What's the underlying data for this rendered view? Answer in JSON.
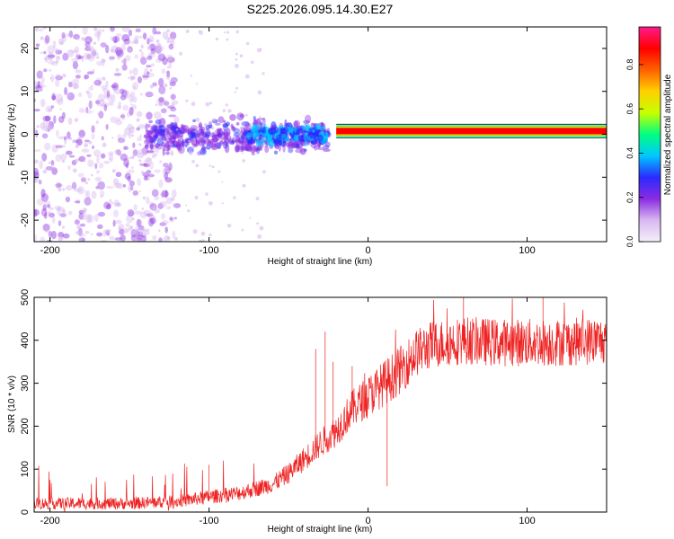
{
  "title": "S225.2026.095.14.30.E27",
  "colors": {
    "snr_line": "#ee2222",
    "band_outline": "#000000",
    "colormap": [
      "#f5f0fa",
      "#d8b8f0",
      "#8a2be2",
      "#2a2aff",
      "#00c8ff",
      "#00ff80",
      "#c8ff00",
      "#ffd000",
      "#ff6000",
      "#ff0000",
      "#ff1a8c"
    ]
  },
  "chart_data": [
    {
      "type": "heatmap",
      "xlabel": "Height of straight line (km)",
      "ylabel": "Frequency (Hz)",
      "xlim": [
        -210,
        150
      ],
      "ylim": [
        -25,
        25
      ],
      "xticks": [
        -200,
        -100,
        0,
        100
      ],
      "yticks": [
        -20,
        -10,
        0,
        10,
        20
      ],
      "colorbar": {
        "label": "Normalized spectral amplitude",
        "range": [
          0,
          0.97
        ],
        "ticks": [
          "0.0",
          "0.2",
          "0.4",
          "0.6",
          "0.8"
        ]
      },
      "features": [
        {
          "x_range": [
            -210,
            -120
          ],
          "freq_range": [
            -25,
            25
          ],
          "amplitude": 0.08
        },
        {
          "x_range": [
            -140,
            -25
          ],
          "freq_range": [
            -6,
            5
          ],
          "amplitude": 0.15
        },
        {
          "x_range": [
            -75,
            -25
          ],
          "freq_range": [
            -3,
            3
          ],
          "amplitude": 0.3
        },
        {
          "x_range": [
            -20,
            150
          ],
          "freq_range": [
            0,
            1.5
          ],
          "amplitude": 0.9
        }
      ]
    },
    {
      "type": "line",
      "xlabel": "Height of straight line (km)",
      "ylabel": "SNR (10 * v/v)",
      "xlim": [
        -210,
        150
      ],
      "ylim": [
        0,
        500
      ],
      "xticks": [
        -200,
        -100,
        0,
        100
      ],
      "yticks": [
        0,
        100,
        200,
        300,
        400,
        500
      ],
      "trend": {
        "x": [
          -210,
          -150,
          -120,
          -100,
          -80,
          -60,
          -50,
          -40,
          -30,
          -20,
          -10,
          0,
          10,
          20,
          30,
          40,
          60,
          80,
          100,
          120,
          150
        ],
        "y": [
          20,
          20,
          25,
          35,
          45,
          65,
          90,
          125,
          160,
          190,
          240,
          270,
          300,
          330,
          370,
          390,
          400,
          395,
          395,
          395,
          400
        ]
      },
      "spikes": [
        {
          "x": -100,
          "y": 110
        },
        {
          "x": -33,
          "y": 380
        },
        {
          "x": -27,
          "y": 420
        },
        {
          "x": -22,
          "y": 350
        },
        {
          "x": -10,
          "y": 340
        },
        {
          "x": 12,
          "y": 60
        },
        {
          "x": 60,
          "y": 500
        },
        {
          "x": 110,
          "y": 500
        }
      ],
      "noise_amplitude": 70
    }
  ]
}
